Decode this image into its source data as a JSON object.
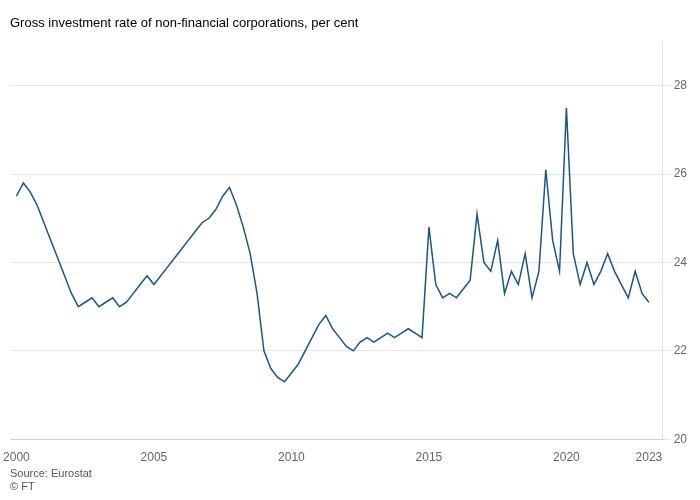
{
  "chart_data": {
    "type": "line",
    "title": "Gross investment rate of non-financial corporations, per cent",
    "annotations": [
      "Source: Eurostat",
      "© FT"
    ],
    "color": "#1a5492",
    "xlim": [
      1999.8,
      2023.5
    ],
    "xticks": [
      2000,
      2005,
      2010,
      2015,
      2020,
      2023
    ],
    "ylim": [
      20,
      29
    ],
    "yticks": [
      20,
      22,
      24,
      26,
      28
    ],
    "grid": "y",
    "x": [
      2000.0,
      2000.25,
      2000.5,
      2000.75,
      2001.0,
      2001.25,
      2001.5,
      2001.75,
      2002.0,
      2002.25,
      2002.5,
      2002.75,
      2003.0,
      2003.25,
      2003.5,
      2003.75,
      2004.0,
      2004.25,
      2004.5,
      2004.75,
      2005.0,
      2005.25,
      2005.5,
      2005.75,
      2006.0,
      2006.25,
      2006.5,
      2006.75,
      2007.0,
      2007.25,
      2007.5,
      2007.75,
      2008.0,
      2008.25,
      2008.5,
      2008.75,
      2009.0,
      2009.25,
      2009.5,
      2009.75,
      2010.0,
      2010.25,
      2010.5,
      2010.75,
      2011.0,
      2011.25,
      2011.5,
      2011.75,
      2012.0,
      2012.25,
      2012.5,
      2012.75,
      2013.0,
      2013.25,
      2013.5,
      2013.75,
      2014.0,
      2014.25,
      2014.5,
      2014.75,
      2015.0,
      2015.25,
      2015.5,
      2015.75,
      2016.0,
      2016.25,
      2016.5,
      2016.75,
      2017.0,
      2017.25,
      2017.5,
      2017.75,
      2018.0,
      2018.25,
      2018.5,
      2018.75,
      2019.0,
      2019.25,
      2019.5,
      2019.75,
      2020.0,
      2020.25,
      2020.5,
      2020.75,
      2021.0,
      2021.25,
      2021.5,
      2021.75,
      2022.0,
      2022.25,
      2022.5,
      2022.75,
      2023.0
    ],
    "values": [
      25.5,
      25.8,
      25.6,
      25.3,
      24.9,
      24.5,
      24.1,
      23.7,
      23.3,
      23.0,
      23.1,
      23.2,
      23.0,
      23.1,
      23.2,
      23.0,
      23.1,
      23.3,
      23.5,
      23.7,
      23.5,
      23.7,
      23.9,
      24.1,
      24.3,
      24.5,
      24.7,
      24.9,
      25.0,
      25.2,
      25.5,
      25.7,
      25.3,
      24.8,
      24.2,
      23.3,
      22.0,
      21.6,
      21.4,
      21.3,
      21.5,
      21.7,
      22.0,
      22.3,
      22.6,
      22.8,
      22.5,
      22.3,
      22.1,
      22.0,
      22.2,
      22.3,
      22.2,
      22.3,
      22.4,
      22.3,
      22.4,
      22.5,
      22.4,
      22.3,
      24.8,
      23.5,
      23.2,
      23.3,
      23.2,
      23.4,
      23.6,
      25.1,
      24.0,
      23.8,
      24.5,
      23.3,
      23.8,
      23.5,
      24.2,
      23.2,
      23.8,
      26.1,
      24.5,
      23.8,
      27.5,
      24.2,
      23.5,
      24.0,
      23.5,
      23.8,
      24.2,
      23.8,
      23.5,
      23.2,
      23.8,
      23.3,
      23.1
    ]
  }
}
